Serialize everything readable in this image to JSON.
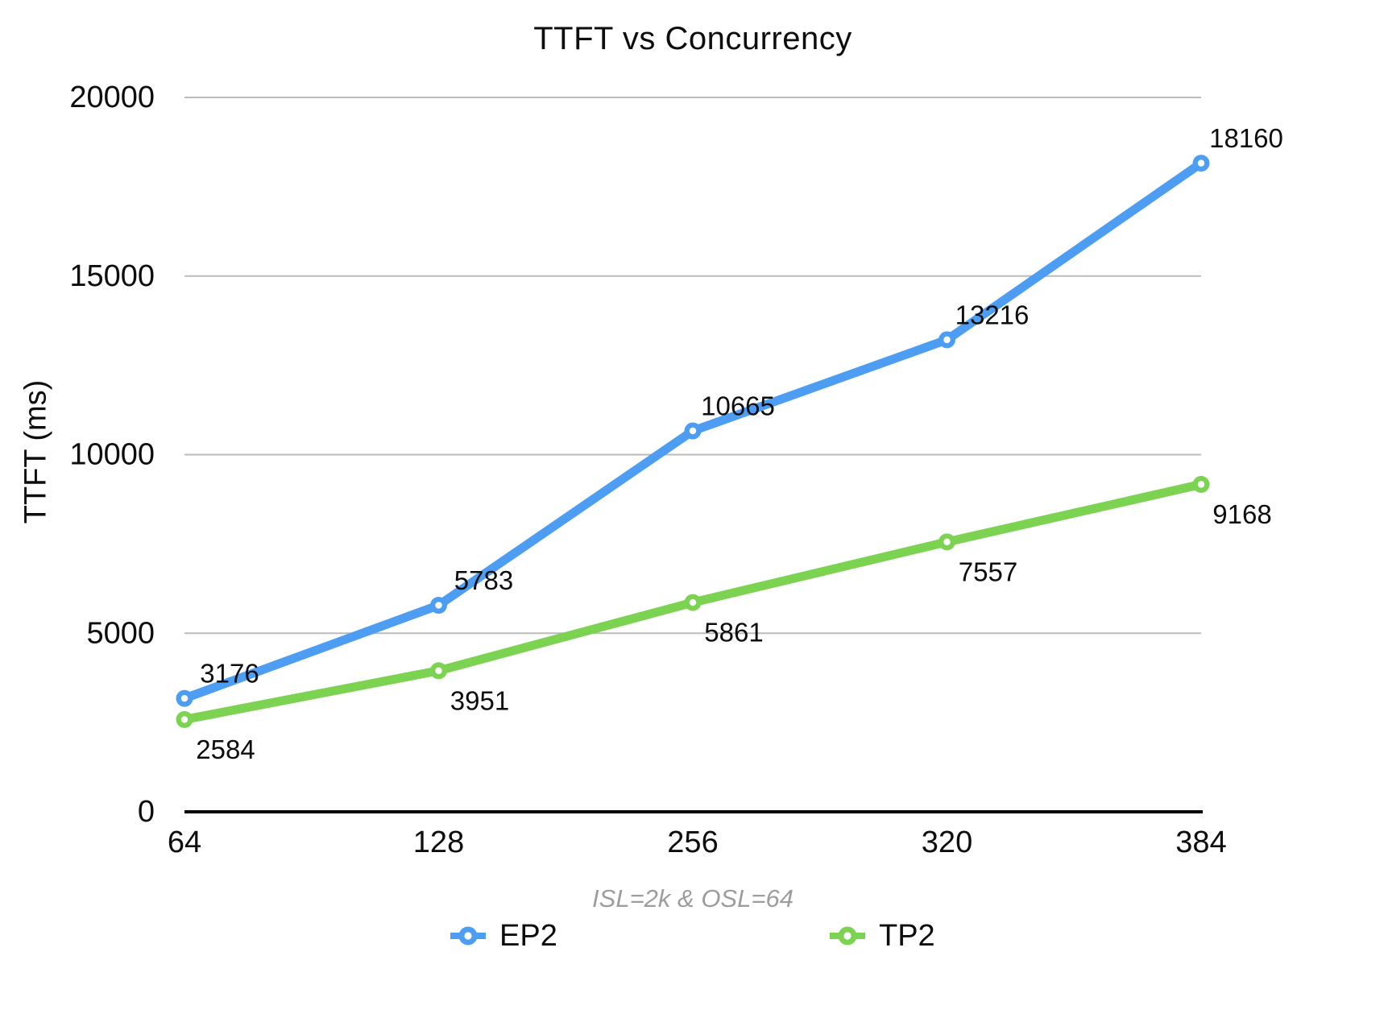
{
  "chart_data": {
    "type": "line",
    "title": "TTFT vs Concurrency",
    "ylabel": "TTFT (ms)",
    "xlabel_note": "ISL=2k & OSL=64",
    "categories": [
      "64",
      "128",
      "256",
      "320",
      "384"
    ],
    "series": [
      {
        "name": "EP2",
        "color": "#4D9DF3",
        "values": [
          3176,
          5783,
          10665,
          13216,
          18160
        ],
        "label_position": "above"
      },
      {
        "name": "TP2",
        "color": "#7CD251",
        "values": [
          2584,
          3951,
          5861,
          7557,
          9168
        ],
        "label_position": "below"
      }
    ],
    "ylim": [
      0,
      20000
    ],
    "yticks": [
      0,
      5000,
      10000,
      15000,
      20000
    ],
    "grid": "horizontal",
    "legend_position": "bottom",
    "colors": {
      "gridline": "#BBBBBB",
      "axis": "#000000",
      "note_text": "#9D9D9D",
      "label_text": "#0D0D0D"
    }
  }
}
